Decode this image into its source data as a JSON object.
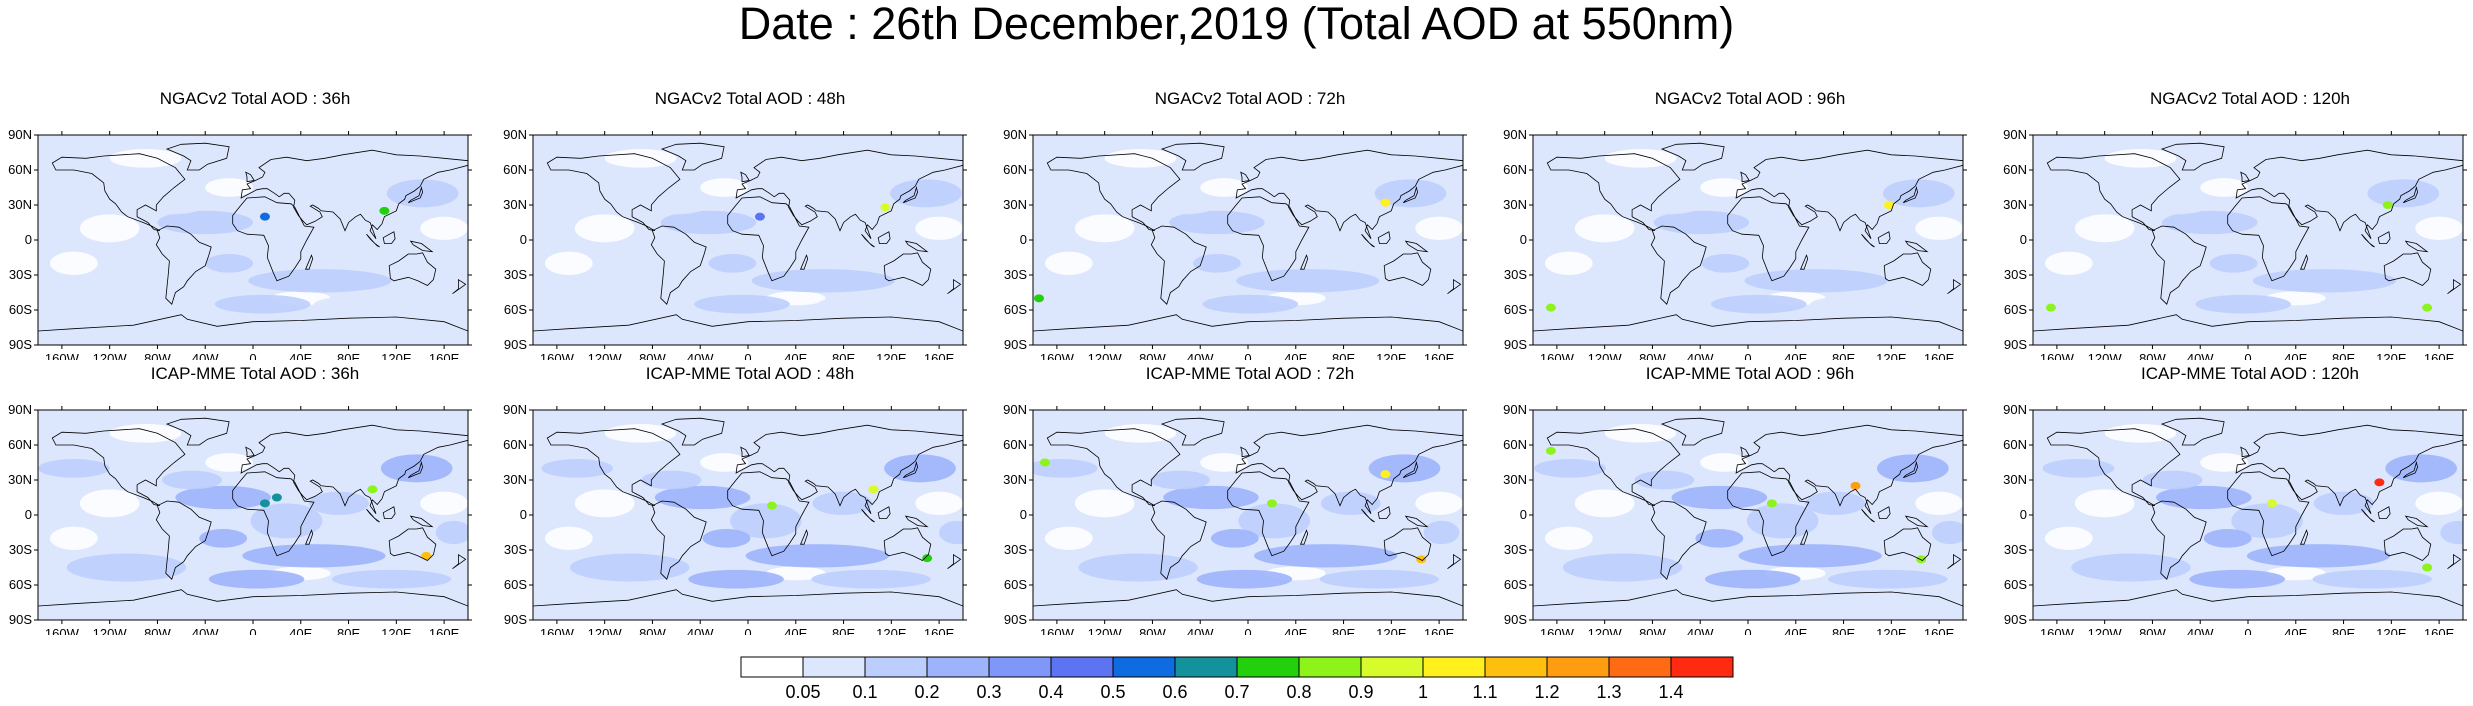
{
  "title": "Date : 26th December,2019 (Total AOD at 550nm)",
  "panels": [
    {
      "title": "NGACv2 Total AOD : 36h",
      "hotspots": [
        [
          "0.5",
          "[10,20]"
        ],
        [
          "0.7",
          "[110,25]"
        ]
      ]
    },
    {
      "title": "NGACv2 Total AOD : 48h",
      "hotspots": [
        [
          "0.4",
          "[10,20]"
        ],
        [
          "0.9",
          "[115,28]"
        ]
      ]
    },
    {
      "title": "NGACv2 Total AOD : 72h",
      "hotspots": [
        [
          "1",
          "[115,32]"
        ],
        [
          "0.7",
          "[-175,-50]"
        ]
      ]
    },
    {
      "title": "NGACv2 Total AOD : 96h",
      "hotspots": [
        [
          "1",
          "[118,30]"
        ],
        [
          "0.8",
          "[-165,-58]"
        ]
      ]
    },
    {
      "title": "NGACv2 Total AOD : 120h",
      "hotspots": [
        [
          "0.8",
          "[117,30]"
        ],
        [
          "0.8",
          "[150,-58]"
        ],
        [
          "0.8",
          "[-165,-58]"
        ]
      ]
    },
    {
      "title": "ICAP-MME Total AOD : 36h",
      "hotspots": [
        [
          "0.8",
          "[100,22]"
        ],
        [
          "0.6",
          "[10,10]"
        ],
        [
          "0.6",
          "[20,15]"
        ],
        [
          "1.1",
          "[145,-35]"
        ]
      ]
    },
    {
      "title": "ICAP-MME Total AOD : 48h",
      "hotspots": [
        [
          "0.9",
          "[105,22]"
        ],
        [
          "0.8",
          "[20,8]"
        ],
        [
          "0.7",
          "[150,-37]"
        ]
      ]
    },
    {
      "title": "ICAP-MME Total AOD : 72h",
      "hotspots": [
        [
          "1",
          "[115,35]"
        ],
        [
          "0.8",
          "[20,10]"
        ],
        [
          "1.1",
          "[145,-38]"
        ],
        [
          "0.8",
          "[-170,45]"
        ]
      ]
    },
    {
      "title": "ICAP-MME Total AOD : 96h",
      "hotspots": [
        [
          "1.2",
          "[90,25]"
        ],
        [
          "0.8",
          "[20,10]"
        ],
        [
          "0.8",
          "[145,-38]"
        ],
        [
          "0.8",
          "[-165,55]"
        ]
      ]
    },
    {
      "title": "ICAP-MME Total AOD : 120h",
      "hotspots": [
        [
          "1.4",
          "[110,28]"
        ],
        [
          "0.9",
          "[20,10]"
        ],
        [
          "0.8",
          "[150,-45]"
        ]
      ]
    }
  ],
  "axes": {
    "lat_labels": [
      "90N",
      "60N",
      "30N",
      "0",
      "30S",
      "60S",
      "90S"
    ],
    "lon_labels": [
      "160W",
      "120W",
      "80W",
      "40W",
      "0",
      "40E",
      "80E",
      "120E",
      "160E"
    ]
  },
  "colorbar": {
    "labels": [
      "0.05",
      "0.1",
      "0.2",
      "0.3",
      "0.4",
      "0.5",
      "0.6",
      "0.7",
      "0.8",
      "0.9",
      "1",
      "1.1",
      "1.2",
      "1.3",
      "1.4"
    ],
    "colors": [
      "#ffffff",
      "#dce6fd",
      "#bccefd",
      "#9db4fc",
      "#7e97f8",
      "#5d74f2",
      "#0f6ce0",
      "#14929c",
      "#22d10c",
      "#8ef31a",
      "#d8fb2c",
      "#fff01e",
      "#ffbf0e",
      "#ff9d10",
      "#ff6a14",
      "#ff2a10"
    ]
  }
}
